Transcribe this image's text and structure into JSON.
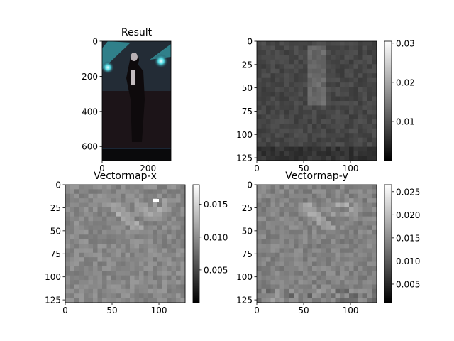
{
  "chart_data": [
    {
      "type": "image",
      "title": "Result",
      "xticks": [
        0,
        200
      ],
      "yticks": [
        0,
        200,
        400,
        600
      ],
      "xlim": [
        0,
        300
      ],
      "ylim": [
        680,
        0
      ],
      "colorbar": null
    },
    {
      "type": "heatmap",
      "title": "",
      "xticks": [
        0,
        50,
        100
      ],
      "yticks": [
        0,
        25,
        50,
        75,
        100,
        125
      ],
      "xlim": [
        0,
        128
      ],
      "ylim": [
        128,
        0
      ],
      "colormap": "gray",
      "colorbar": {
        "ticks": [
          0.01,
          0.02,
          0.03
        ],
        "range": [
          0.0,
          0.0305
        ]
      }
    },
    {
      "type": "heatmap",
      "title": "Vectormap-x",
      "xticks": [
        0,
        50,
        100
      ],
      "yticks": [
        0,
        25,
        50,
        75,
        100,
        125
      ],
      "xlim": [
        0,
        128
      ],
      "ylim": [
        128,
        0
      ],
      "colormap": "gray",
      "colorbar": {
        "ticks": [
          0.005,
          0.01,
          0.015
        ],
        "range": [
          0.0,
          0.018
        ]
      }
    },
    {
      "type": "heatmap",
      "title": "Vectormap-y",
      "xticks": [
        0,
        50,
        100
      ],
      "yticks": [
        0,
        25,
        50,
        75,
        100,
        125
      ],
      "xlim": [
        0,
        128
      ],
      "ylim": [
        128,
        0
      ],
      "colormap": "gray",
      "colorbar": {
        "ticks": [
          0.005,
          0.01,
          0.015,
          0.02,
          0.025
        ],
        "range": [
          0.001,
          0.0265
        ]
      }
    }
  ]
}
